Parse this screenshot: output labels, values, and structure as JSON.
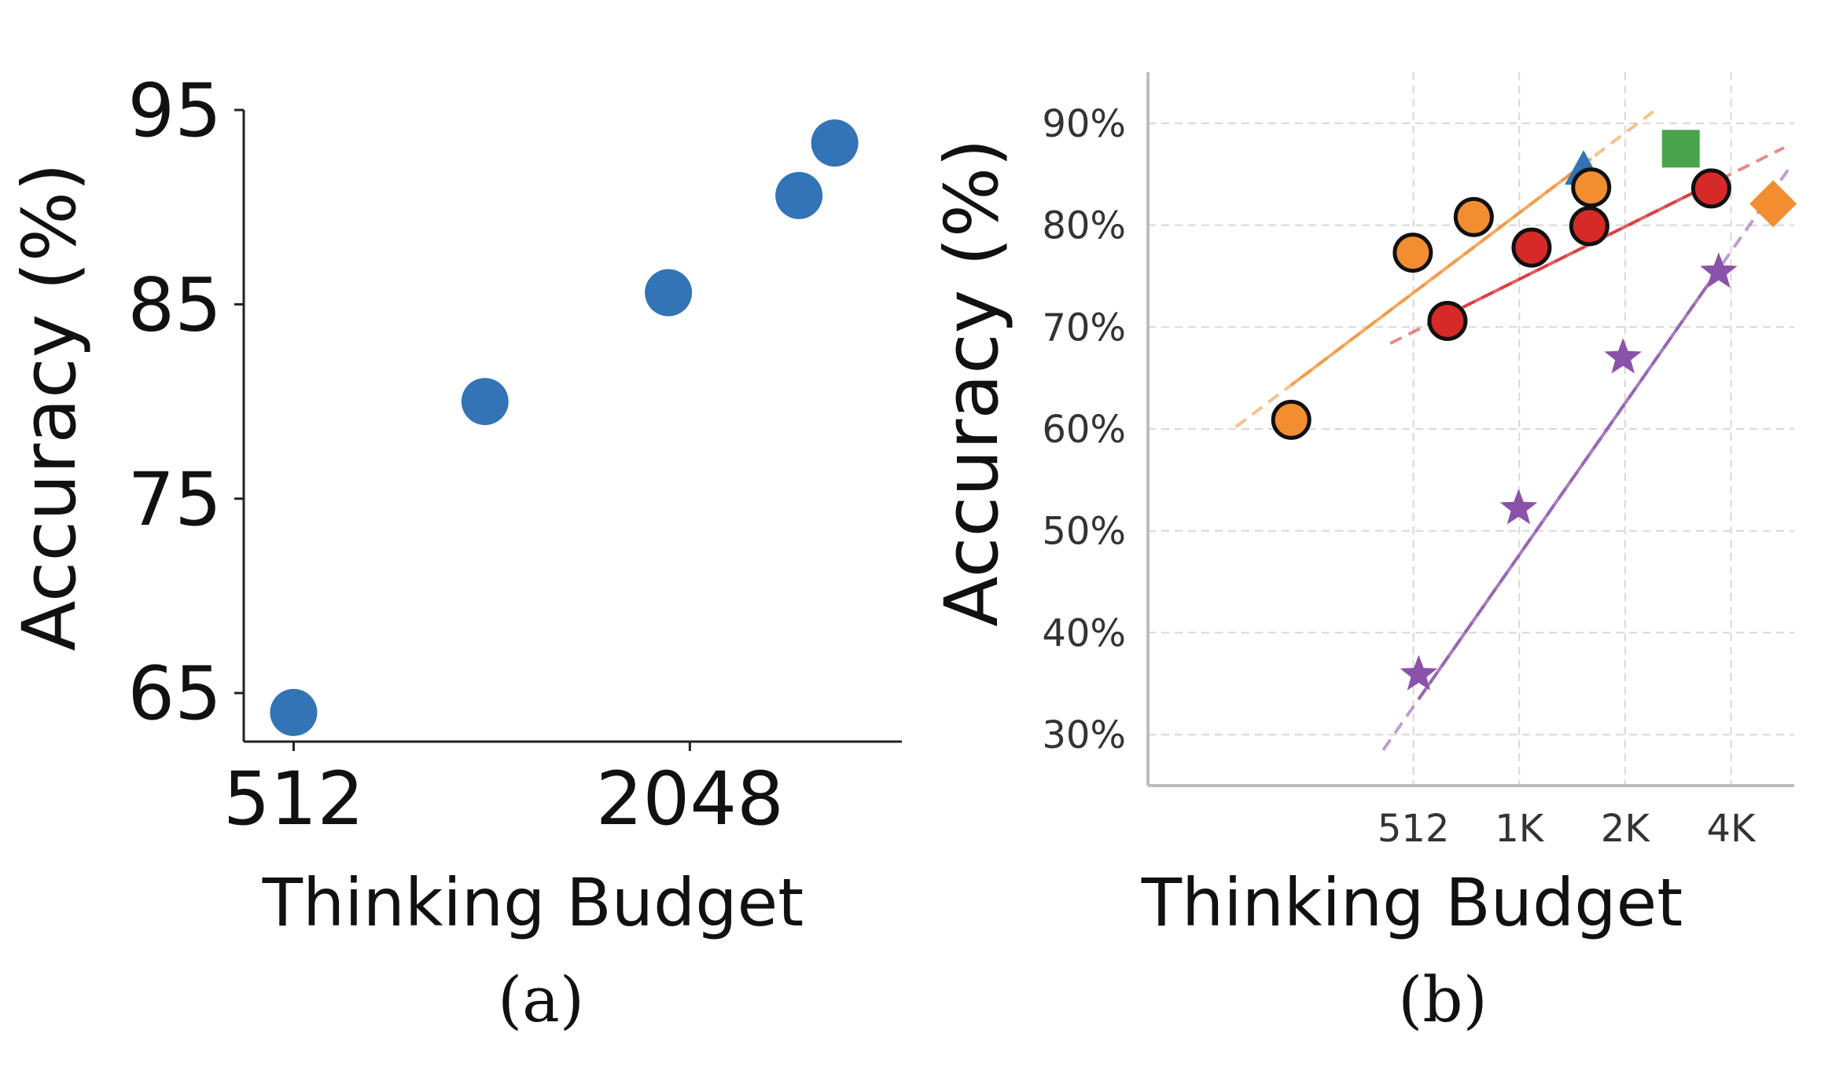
{
  "charts": [
    {
      "panel_label": "(a)",
      "xlabel": "Thinking Budget",
      "ylabel": "Accuracy (%)",
      "tick_labels_x": [
        "512",
        "2048"
      ],
      "tick_labels_y": [
        "65",
        "75",
        "85",
        "95"
      ]
    },
    {
      "panel_label": "(b)",
      "xlabel": "Thinking Budget",
      "ylabel": "Accuracy (%)",
      "tick_labels_x": [
        "512",
        "1K",
        "2K",
        "4K"
      ],
      "tick_labels_y": [
        "30%",
        "40%",
        "50%",
        "60%",
        "70%",
        "80%",
        "90%"
      ]
    }
  ],
  "chart_data": [
    {
      "type": "scatter",
      "panel": "(a)",
      "xlabel": "Thinking Budget",
      "ylabel": "Accuracy (%)",
      "x_scale": "log2",
      "xticks": [
        512,
        2048
      ],
      "yticks": [
        65,
        75,
        85,
        95
      ],
      "xlim": [
        430,
        4300
      ],
      "ylim": [
        62.5,
        95
      ],
      "grid": false,
      "series": [
        {
          "color": "#3274b5",
          "marker": "circle",
          "points": [
            {
              "x": 512,
              "y": 64.0
            },
            {
              "x": 1000,
              "y": 80.0
            },
            {
              "x": 1900,
              "y": 85.6
            },
            {
              "x": 3000,
              "y": 90.6
            },
            {
              "x": 3400,
              "y": 93.3
            }
          ]
        }
      ]
    },
    {
      "type": "scatter",
      "panel": "(b)",
      "xlabel": "Thinking Budget",
      "ylabel": "Accuracy (%)",
      "x_scale": "log2",
      "xticks": [
        512,
        1024,
        2048,
        4096
      ],
      "ytick_values": [
        30,
        40,
        50,
        60,
        70,
        80,
        90
      ],
      "xlim": [
        90,
        6200
      ],
      "ylim": [
        25,
        95
      ],
      "grid": true,
      "series": [
        {
          "color": "#f28e30",
          "marker": "circle-outlined",
          "points": [
            {
              "x": 230,
              "y": 60.9
            },
            {
              "x": 510,
              "y": 77.3
            },
            {
              "x": 760,
              "y": 80.8
            },
            {
              "x": 1640,
              "y": 83.7
            }
          ],
          "trend": {
            "x": [
              160,
              2520
            ],
            "y": [
              60.2,
              91.4
            ]
          }
        },
        {
          "color": "#d62a28",
          "marker": "circle-outlined",
          "points": [
            {
              "x": 640,
              "y": 70.6
            },
            {
              "x": 1110,
              "y": 77.8
            },
            {
              "x": 1620,
              "y": 79.9
            },
            {
              "x": 3600,
              "y": 83.6
            }
          ],
          "trend": {
            "x": [
              440,
              5800
            ],
            "y": [
              68.4,
              87.6
            ]
          }
        },
        {
          "color": "#8a52a8",
          "marker": "star",
          "points": [
            {
              "x": 530,
              "y": 35.9
            },
            {
              "x": 1020,
              "y": 52.2
            },
            {
              "x": 2020,
              "y": 67.0
            },
            {
              "x": 3780,
              "y": 75.4
            }
          ],
          "trend": {
            "x": [
              420,
              6000
            ],
            "y": [
              28.5,
              85.6
            ]
          }
        },
        {
          "color": "#3274b5",
          "marker": "triangle",
          "points": [
            {
              "x": 1560,
              "y": 85.2
            }
          ]
        },
        {
          "color": "#4aa44d",
          "marker": "square",
          "points": [
            {
              "x": 2950,
              "y": 87.5
            }
          ]
        },
        {
          "color": "#f28e30",
          "marker": "diamond",
          "points": [
            {
              "x": 5400,
              "y": 82.1
            }
          ]
        }
      ]
    }
  ]
}
